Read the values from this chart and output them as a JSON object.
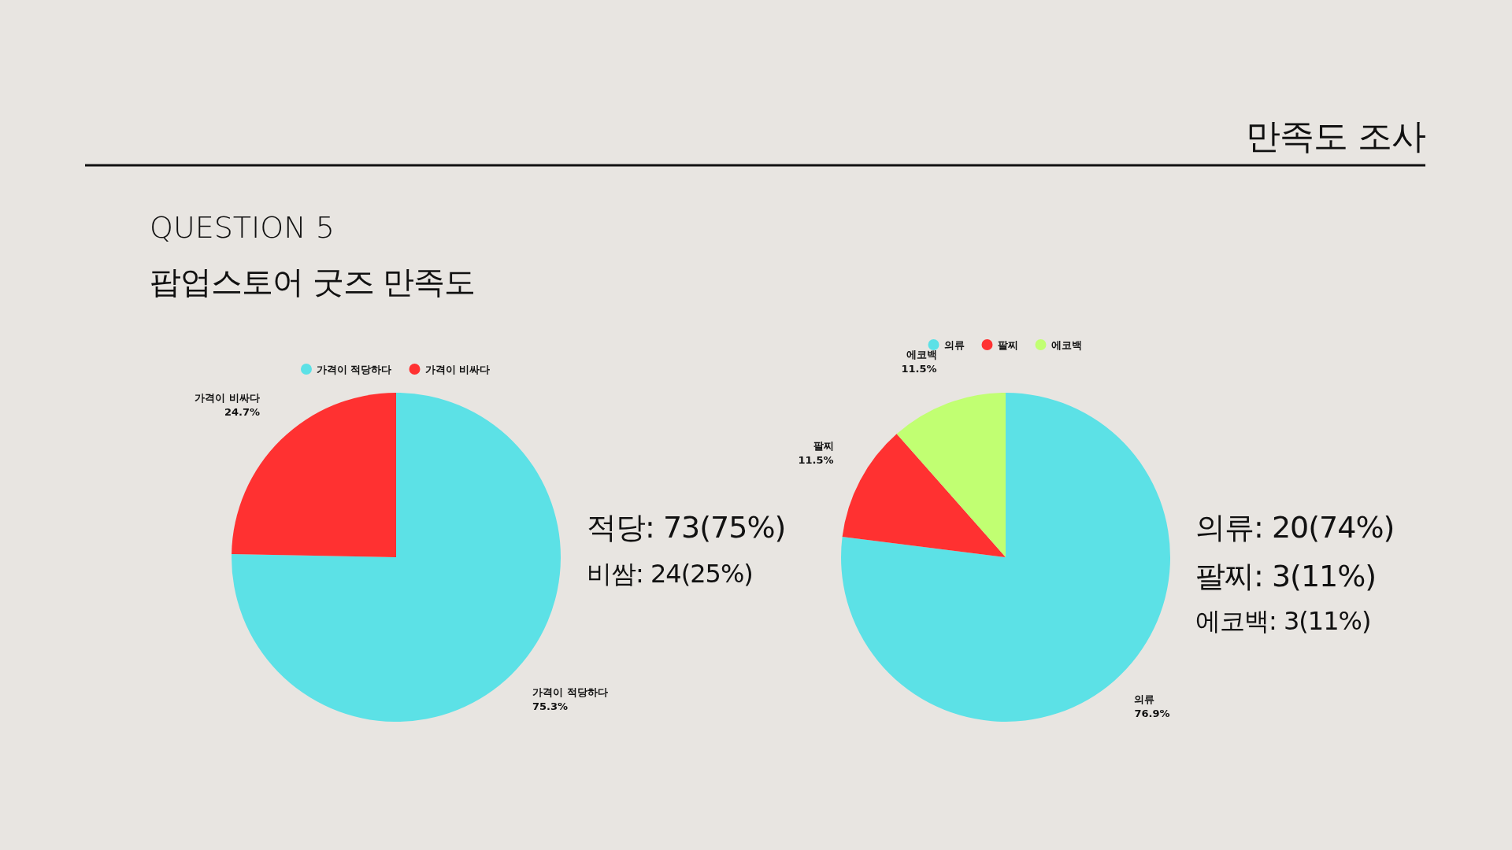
{
  "chart_data": [
    {
      "type": "pie",
      "title": "QUESTION 5",
      "subtitle": "팝업스토어 굿즈 만족도",
      "categories": [
        "가격이 적당하다",
        "가격이 비싸다"
      ],
      "values": [
        75.3,
        24.7
      ],
      "value_labels": [
        "75.3%",
        "24.7%"
      ],
      "colors": [
        "#5ce1e6",
        "#ff3131"
      ],
      "legend": "top",
      "annotations": [
        "만족도 조사",
        "적당: 73(75%)",
        "비쌈: 24(25%)"
      ]
    },
    {
      "type": "pie",
      "categories": [
        "의류",
        "팔찌",
        "에코백"
      ],
      "values": [
        76.9,
        11.5,
        11.5
      ],
      "value_labels": [
        "76.9%",
        "11.5%",
        "11.5%"
      ],
      "colors": [
        "#5ce1e6",
        "#ff3131",
        "#c1ff72"
      ],
      "legend": "top",
      "annotations": [
        "의류: 20(74%)",
        "팔찌: 3(11%)",
        "에코백: 3(11%)"
      ]
    }
  ]
}
